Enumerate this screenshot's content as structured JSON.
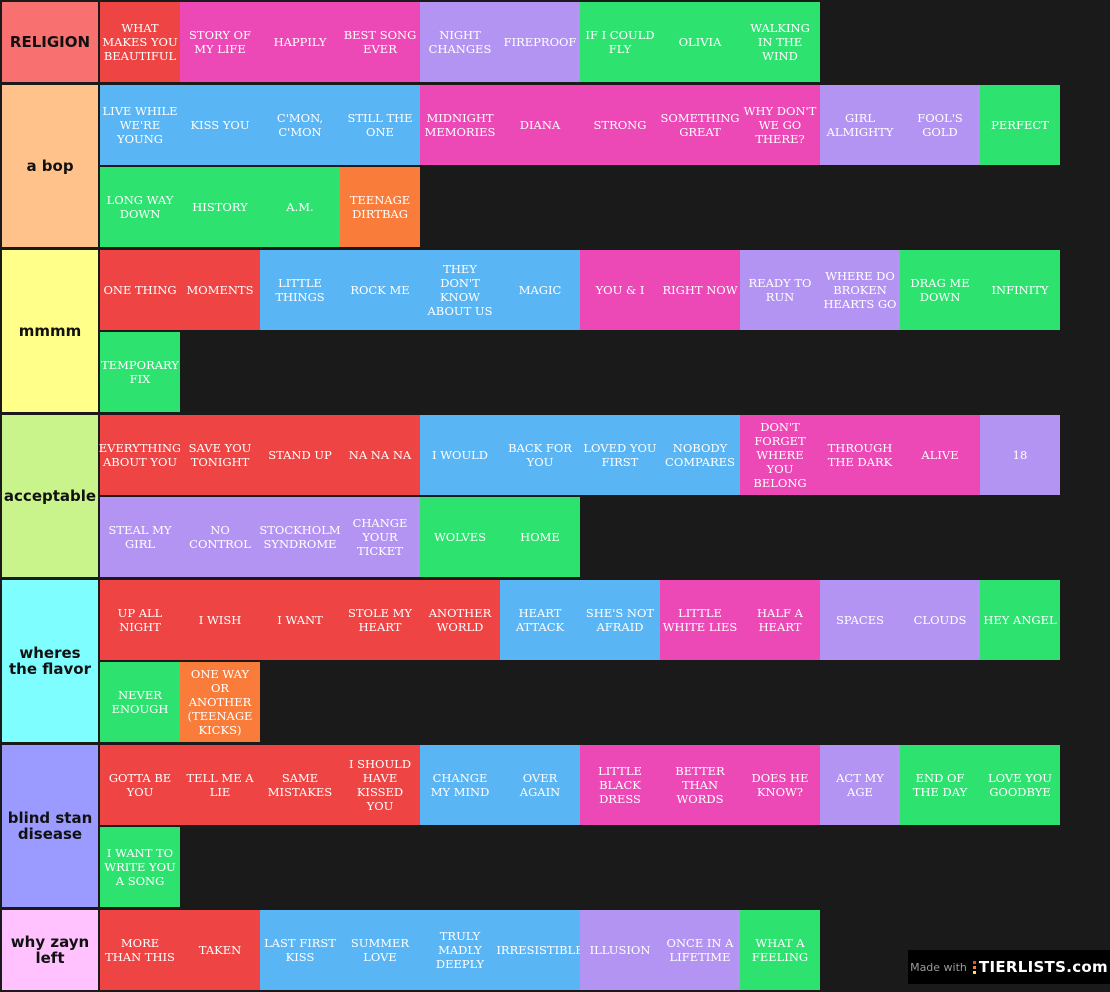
{
  "tiers": [
    {
      "label": "RELIGION",
      "color": "#f87070",
      "items": [
        {
          "text": "WHAT MAKES YOU BEAUTIFUL",
          "color": "red"
        },
        {
          "text": "STORY OF MY LIFE",
          "color": "pink"
        },
        {
          "text": "HAPPILY",
          "color": "pink"
        },
        {
          "text": "BEST SONG EVER",
          "color": "pink"
        },
        {
          "text": "NIGHT CHANGES",
          "color": "lav"
        },
        {
          "text": "FIREPROOF",
          "color": "lav"
        },
        {
          "text": "IF I COULD FLY",
          "color": "green"
        },
        {
          "text": "OLIVIA",
          "color": "green"
        },
        {
          "text": "WALKING IN THE WIND",
          "color": "green"
        }
      ]
    },
    {
      "label": "a bop",
      "color": "#ffc28a",
      "items": [
        {
          "text": "LIVE WHILE WE'RE YOUNG",
          "color": "blue"
        },
        {
          "text": "KISS YOU",
          "color": "blue"
        },
        {
          "text": "C'MON, C'MON",
          "color": "blue"
        },
        {
          "text": "STILL THE ONE",
          "color": "blue"
        },
        {
          "text": "MIDNIGHT MEMORIES",
          "color": "pink"
        },
        {
          "text": "DIANA",
          "color": "pink"
        },
        {
          "text": "STRONG",
          "color": "pink"
        },
        {
          "text": "SOMETHING GREAT",
          "color": "pink"
        },
        {
          "text": "WHY DON'T WE GO THERE?",
          "color": "pink"
        },
        {
          "text": "GIRL ALMIGHTY",
          "color": "lav"
        },
        {
          "text": "FOOL'S GOLD",
          "color": "lav"
        },
        {
          "text": "PERFECT",
          "color": "green"
        },
        {
          "text": "LONG WAY DOWN",
          "color": "green"
        },
        {
          "text": "HISTORY",
          "color": "green"
        },
        {
          "text": "A.M.",
          "color": "green"
        },
        {
          "text": "TEENAGE DIRTBAG",
          "color": "orange"
        }
      ]
    },
    {
      "label": "mmmm",
      "color": "#ffff8a",
      "items": [
        {
          "text": "ONE THING",
          "color": "red"
        },
        {
          "text": "MOMENTS",
          "color": "red"
        },
        {
          "text": "LITTLE THINGS",
          "color": "blue"
        },
        {
          "text": "ROCK ME",
          "color": "blue"
        },
        {
          "text": "THEY DON'T KNOW ABOUT US",
          "color": "blue"
        },
        {
          "text": "MAGIC",
          "color": "blue"
        },
        {
          "text": "YOU & I",
          "color": "pink"
        },
        {
          "text": "RIGHT NOW",
          "color": "pink"
        },
        {
          "text": "READY TO RUN",
          "color": "lav"
        },
        {
          "text": "WHERE DO BROKEN HEARTS GO",
          "color": "lav"
        },
        {
          "text": "DRAG ME DOWN",
          "color": "green"
        },
        {
          "text": "INFINITY",
          "color": "green"
        },
        {
          "text": "TEMPORARY FIX",
          "color": "green"
        }
      ]
    },
    {
      "label": "acceptable",
      "color": "#c9f48c",
      "items": [
        {
          "text": "EVERYTHING ABOUT YOU",
          "color": "red"
        },
        {
          "text": "SAVE YOU TONIGHT",
          "color": "red"
        },
        {
          "text": "STAND UP",
          "color": "red"
        },
        {
          "text": "NA NA NA",
          "color": "red"
        },
        {
          "text": "I WOULD",
          "color": "blue"
        },
        {
          "text": "BACK FOR YOU",
          "color": "blue"
        },
        {
          "text": "LOVED YOU FIRST",
          "color": "blue"
        },
        {
          "text": "NOBODY COMPARES",
          "color": "blue"
        },
        {
          "text": "DON'T FORGET WHERE YOU BELONG",
          "color": "pink"
        },
        {
          "text": "THROUGH THE DARK",
          "color": "pink"
        },
        {
          "text": "ALIVE",
          "color": "pink"
        },
        {
          "text": "18",
          "color": "lav"
        },
        {
          "text": "STEAL MY GIRL",
          "color": "lav"
        },
        {
          "text": "NO CONTROL",
          "color": "lav"
        },
        {
          "text": "STOCKHOLM SYNDROME",
          "color": "lav"
        },
        {
          "text": "CHANGE YOUR TICKET",
          "color": "lav"
        },
        {
          "text": "WOLVES",
          "color": "green"
        },
        {
          "text": "HOME",
          "color": "green"
        }
      ]
    },
    {
      "label": "wheres\nthe flavor",
      "color": "#7ffeff",
      "items": [
        {
          "text": "UP ALL NIGHT",
          "color": "red"
        },
        {
          "text": "I WISH",
          "color": "red"
        },
        {
          "text": "I WANT",
          "color": "red"
        },
        {
          "text": "STOLE MY HEART",
          "color": "red"
        },
        {
          "text": "ANOTHER WORLD",
          "color": "red"
        },
        {
          "text": "HEART ATTACK",
          "color": "blue"
        },
        {
          "text": "SHE'S NOT AFRAID",
          "color": "blue"
        },
        {
          "text": "LITTLE WHITE LIES",
          "color": "pink"
        },
        {
          "text": "HALF A HEART",
          "color": "pink"
        },
        {
          "text": "SPACES",
          "color": "lav"
        },
        {
          "text": "CLOUDS",
          "color": "lav"
        },
        {
          "text": "HEY ANGEL",
          "color": "green"
        },
        {
          "text": "NEVER ENOUGH",
          "color": "green"
        },
        {
          "text": "ONE WAY OR ANOTHER (TEENAGE KICKS)",
          "color": "orange"
        }
      ]
    },
    {
      "label": "blind stan\ndisease",
      "color": "#9b9bff",
      "items": [
        {
          "text": "GOTTA BE YOU",
          "color": "red"
        },
        {
          "text": "TELL ME A LIE",
          "color": "red"
        },
        {
          "text": "SAME MISTAKES",
          "color": "red"
        },
        {
          "text": "I SHOULD HAVE KISSED YOU",
          "color": "red"
        },
        {
          "text": "CHANGE MY MIND",
          "color": "blue"
        },
        {
          "text": "OVER AGAIN",
          "color": "blue"
        },
        {
          "text": "LITTLE BLACK DRESS",
          "color": "pink"
        },
        {
          "text": "BETTER THAN WORDS",
          "color": "pink"
        },
        {
          "text": "DOES HE KNOW?",
          "color": "pink"
        },
        {
          "text": "ACT MY AGE",
          "color": "lav"
        },
        {
          "text": "END OF THE DAY",
          "color": "green"
        },
        {
          "text": "LOVE YOU GOODBYE",
          "color": "green"
        },
        {
          "text": "I WANT TO WRITE YOU A SONG",
          "color": "green"
        }
      ]
    },
    {
      "label": "why zayn\nleft",
      "color": "#ffc2ff",
      "items": [
        {
          "text": "MORE THAN THIS",
          "color": "red"
        },
        {
          "text": "TAKEN",
          "color": "red"
        },
        {
          "text": "LAST FIRST KISS",
          "color": "blue"
        },
        {
          "text": "SUMMER LOVE",
          "color": "blue"
        },
        {
          "text": "TRULY MADLY DEEPLY",
          "color": "blue"
        },
        {
          "text": "IRRESISTIBLE",
          "color": "blue"
        },
        {
          "text": "ILLUSION",
          "color": "lav"
        },
        {
          "text": "ONCE IN A LIFETIME",
          "color": "lav"
        },
        {
          "text": "WHAT A FEELING",
          "color": "green"
        }
      ]
    }
  ],
  "watermark": {
    "made_with": "Made with",
    "brand": "TIERLISTS.com"
  }
}
